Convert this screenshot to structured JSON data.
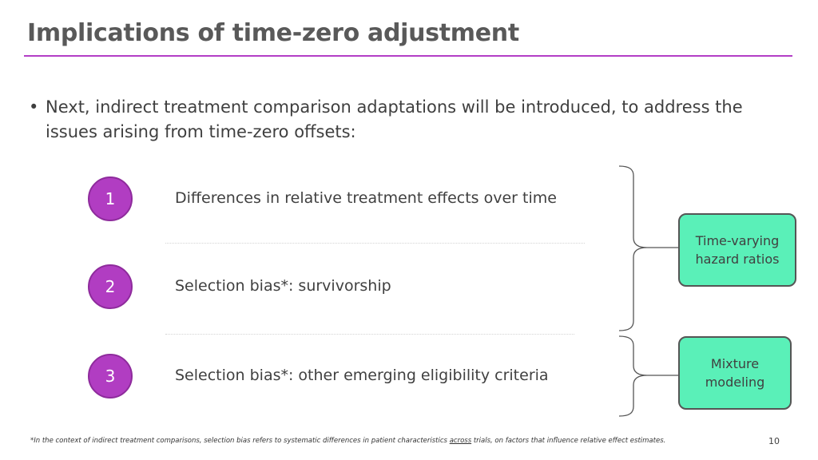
{
  "title": "Implications of time-zero adjustment",
  "bullet": {
    "marker": "•",
    "text": "Next, indirect treatment comparison adaptations will be introduced, to address the issues arising from time-zero offsets:"
  },
  "items": [
    {
      "number": "1",
      "label": "Differences in relative treatment effects over time"
    },
    {
      "number": "2",
      "label": "Selection bias*: survivorship"
    },
    {
      "number": "3",
      "label": "Selection bias*: other emerging eligibility criteria"
    }
  ],
  "boxes": [
    {
      "label": "Time-varying hazard ratios"
    },
    {
      "label": "Mixture modeling"
    }
  ],
  "footnote": {
    "before": "*In the context of indirect treatment comparisons, selection bias refers to systematic differences in patient characteristics ",
    "underlined": "across",
    "after": " trials, on factors that influence relative effect estimates."
  },
  "page_number": "10",
  "colors": {
    "accent": "#b33ec6",
    "circle_fill": "#b13dc2",
    "box_fill": "#5af0b8"
  }
}
